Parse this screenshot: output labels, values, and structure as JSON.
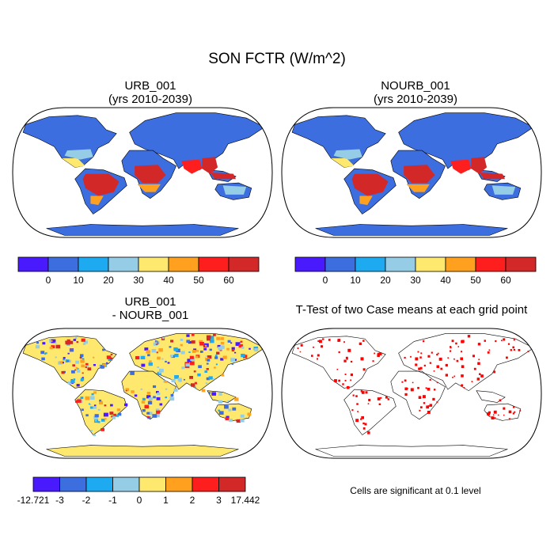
{
  "figure": {
    "title": "SON FCTR (W/m^2)",
    "panels": [
      {
        "id": "urb",
        "title_line1": "URB_001",
        "title_line2": "(yrs 2010-2039)"
      },
      {
        "id": "nourb",
        "title_line1": "NOURB_001",
        "title_line2": "(yrs 2010-2039)"
      },
      {
        "id": "diff",
        "title_line1": "URB_001",
        "title_line2": "- NOURB_001"
      },
      {
        "id": "ttest",
        "title_line1": "T-Test of two Case means at each grid point",
        "title_line2": ""
      }
    ],
    "significance_note": "Cells are significant at 0.1 level"
  },
  "colorbars": {
    "absolute": {
      "colors": [
        "#4a1aff",
        "#3c6ee0",
        "#1eaaf0",
        "#96cde6",
        "#ffe86e",
        "#ffa01e",
        "#ff1e1e",
        "#d22828"
      ],
      "labels": [
        "0",
        "10",
        "20",
        "30",
        "40",
        "50",
        "60"
      ]
    },
    "difference": {
      "colors": [
        "#4a1aff",
        "#3c6ee0",
        "#1eaaf0",
        "#96cde6",
        "#ffe86e",
        "#ffa01e",
        "#ff1e1e",
        "#d22828"
      ],
      "labels": [
        "-12.721",
        "-3",
        "-2",
        "-1",
        "0",
        "1",
        "2",
        "3",
        "17.442"
      ]
    }
  },
  "map_style": {
    "projection": "Robinson",
    "ocean": "#ffffff",
    "significant_color": "#ff0000"
  }
}
